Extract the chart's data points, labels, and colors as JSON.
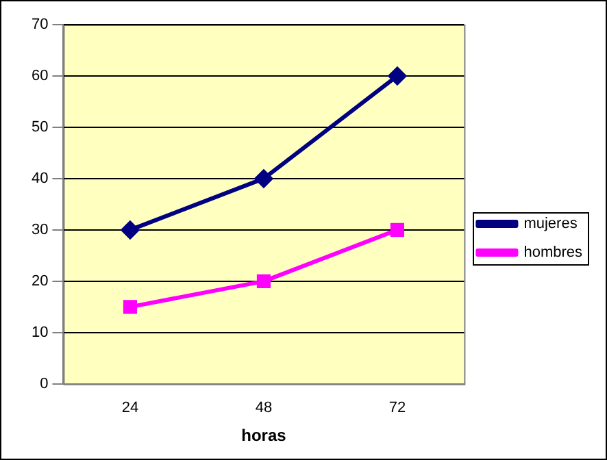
{
  "chart_data": {
    "type": "line",
    "xlabel": "horas",
    "categories": [
      "24",
      "48",
      "72"
    ],
    "series": [
      {
        "name": "mujeres",
        "color": "#000080",
        "values": [
          30,
          40,
          60
        ],
        "marker": "diamond"
      },
      {
        "name": "hombres",
        "color": "#ff00ff",
        "values": [
          15,
          20,
          30
        ],
        "marker": "square"
      }
    ],
    "ylim": [
      0,
      70
    ],
    "yticks": [
      0,
      10,
      20,
      30,
      40,
      50,
      60,
      70
    ],
    "grid": "y",
    "legend": "right",
    "line_style": "solid"
  }
}
